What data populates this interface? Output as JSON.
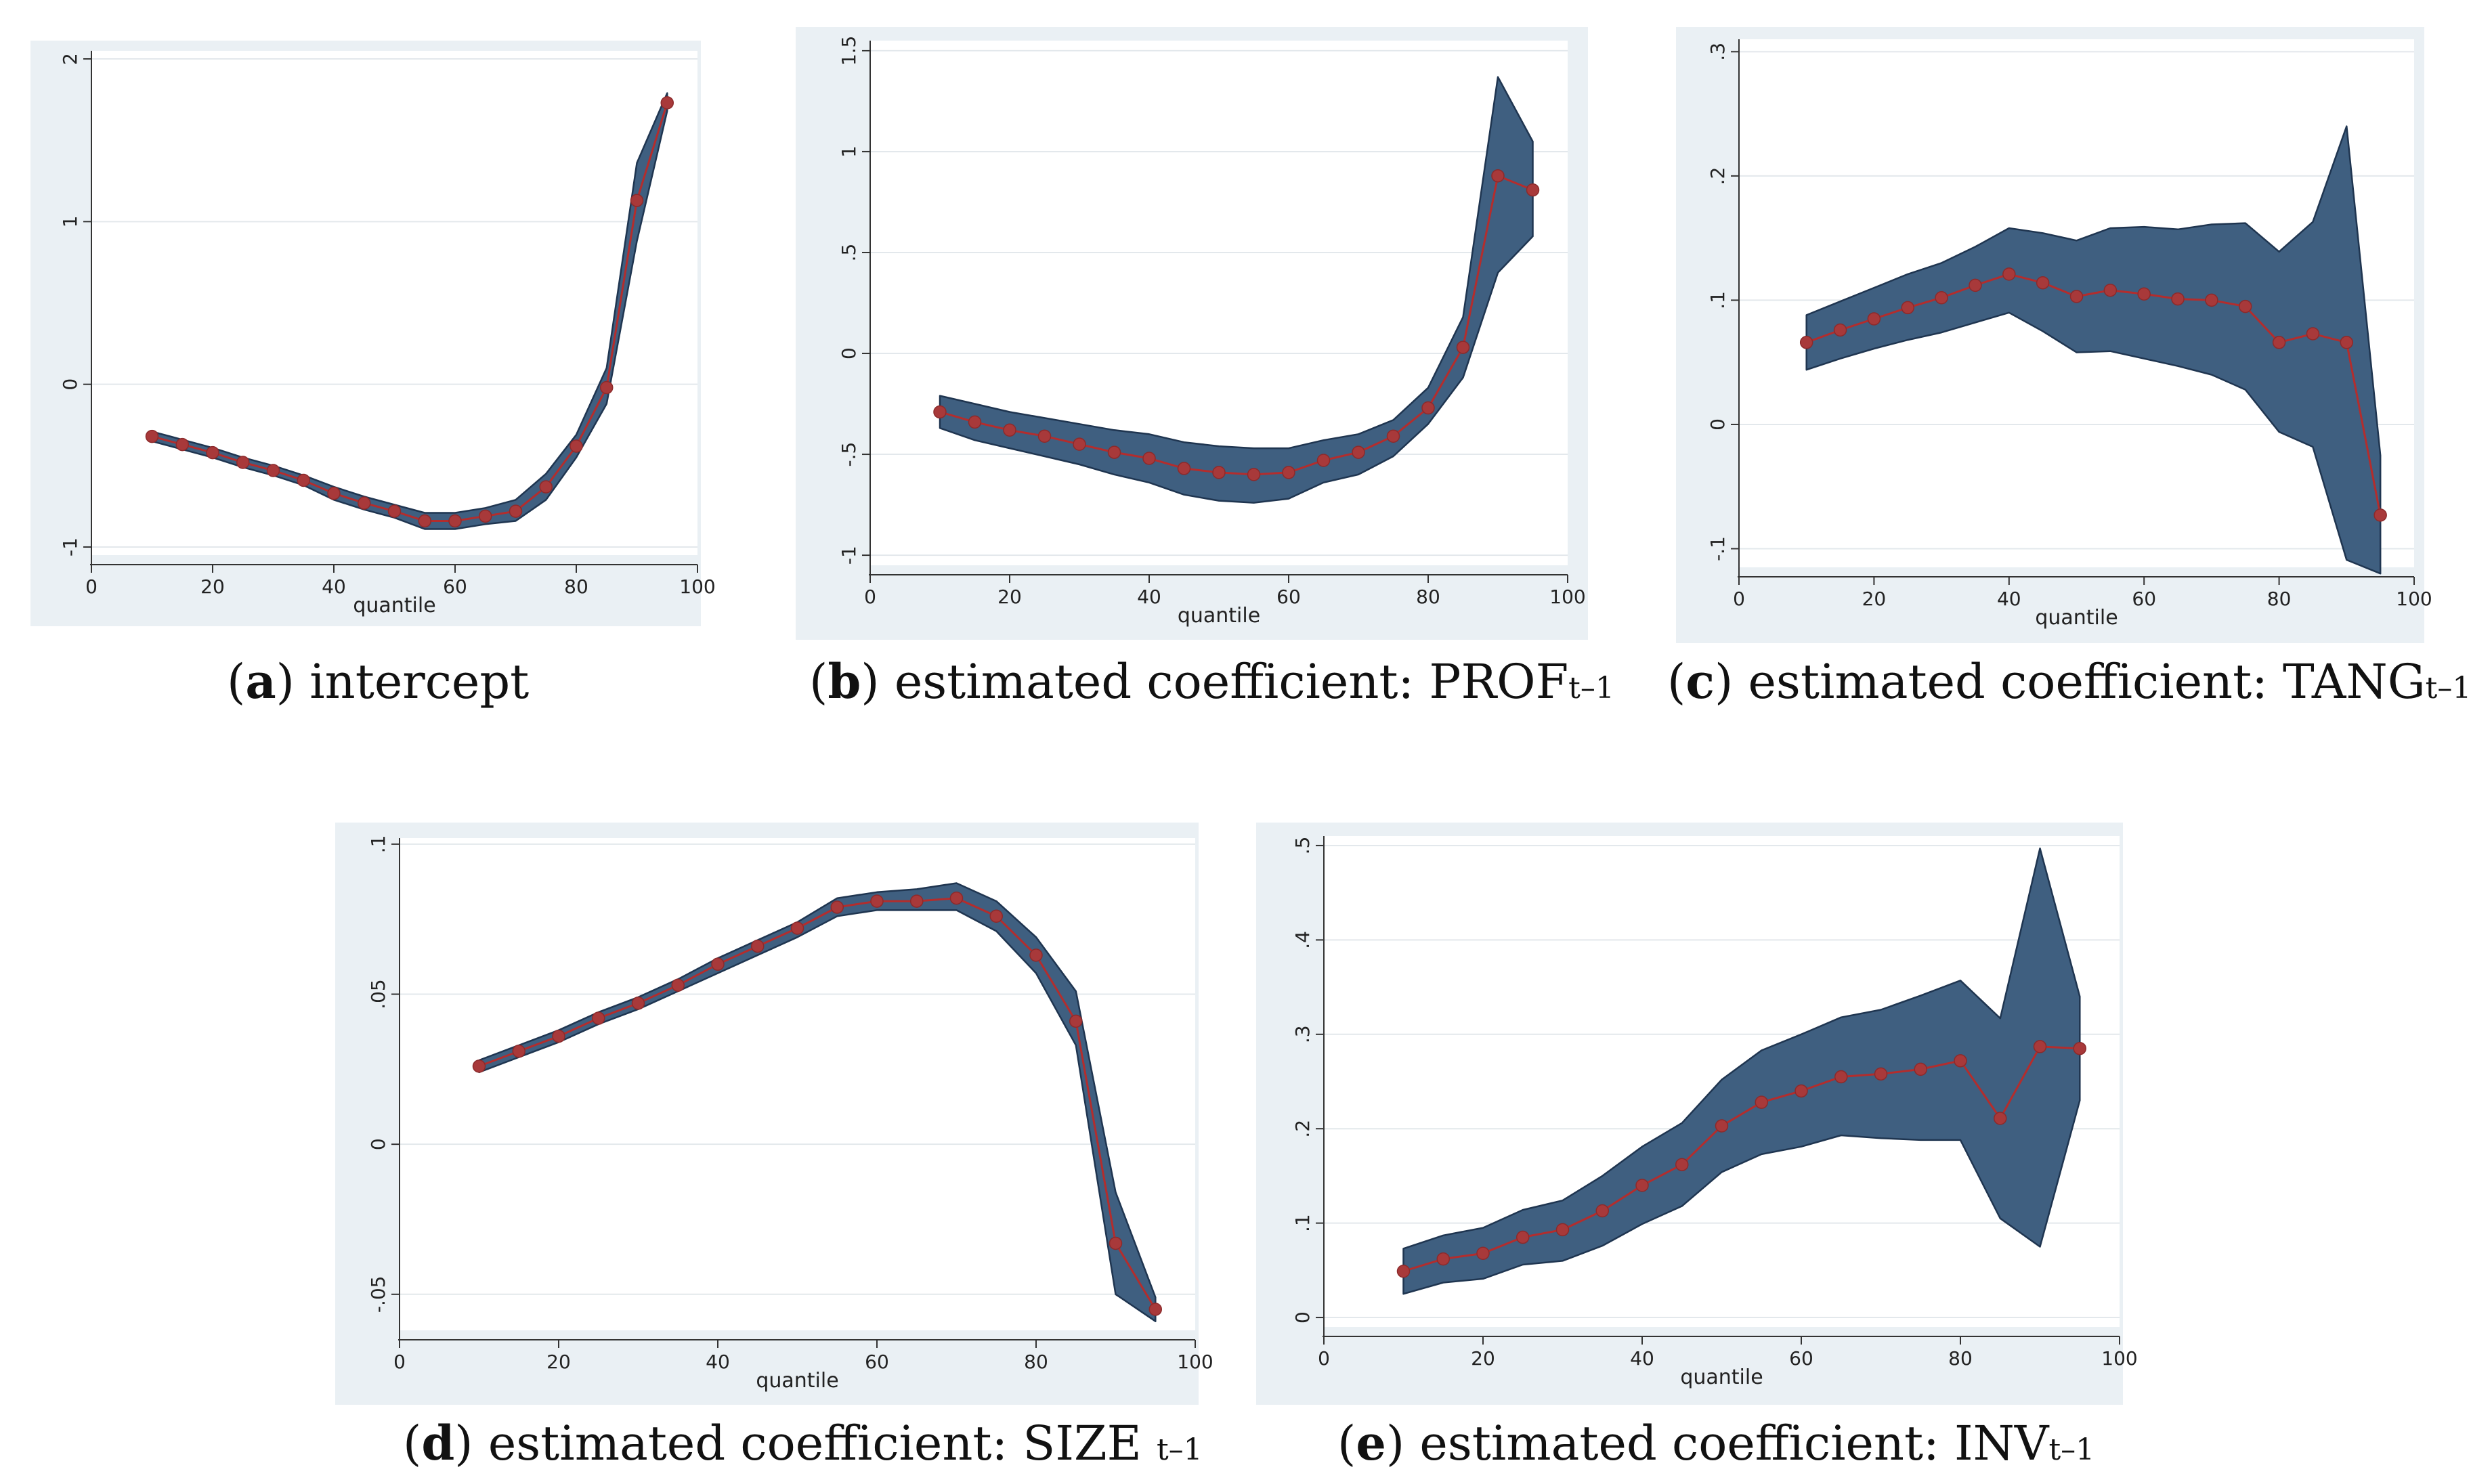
{
  "chart_data": [
    {
      "id": "a",
      "type": "line",
      "xlabel": "quantile",
      "xlim": [
        0,
        100
      ],
      "xticks": [
        "0",
        "20",
        "40",
        "60",
        "80",
        "100"
      ],
      "ylim": [
        -1.05,
        2.05
      ],
      "yticks": [
        {
          "v": -1,
          "t": "-1"
        },
        {
          "v": 0,
          "t": "0"
        },
        {
          "v": 1,
          "t": "1"
        },
        {
          "v": 2,
          "t": "2"
        }
      ],
      "x": [
        10,
        15,
        20,
        25,
        30,
        35,
        40,
        45,
        50,
        55,
        60,
        65,
        70,
        75,
        80,
        85,
        90,
        95
      ],
      "y": [
        -0.32,
        -0.37,
        -0.42,
        -0.48,
        -0.53,
        -0.59,
        -0.67,
        -0.73,
        -0.78,
        -0.84,
        -0.84,
        -0.81,
        -0.78,
        -0.63,
        -0.38,
        -0.02,
        1.13,
        1.73
      ],
      "lower": [
        -0.35,
        -0.4,
        -0.45,
        -0.51,
        -0.56,
        -0.62,
        -0.71,
        -0.77,
        -0.82,
        -0.89,
        -0.89,
        -0.86,
        -0.84,
        -0.71,
        -0.45,
        -0.12,
        0.88,
        1.68
      ],
      "upper": [
        -0.29,
        -0.34,
        -0.39,
        -0.45,
        -0.5,
        -0.56,
        -0.63,
        -0.69,
        -0.74,
        -0.79,
        -0.79,
        -0.76,
        -0.71,
        -0.55,
        -0.31,
        0.1,
        1.36,
        1.79
      ],
      "caption_label": "a",
      "caption_text": "intercept",
      "caption_sub": ""
    },
    {
      "id": "b",
      "type": "line",
      "xlabel": "quantile",
      "xlim": [
        0,
        100
      ],
      "xticks": [
        "0",
        "20",
        "40",
        "60",
        "80",
        "100"
      ],
      "ylim": [
        -1.05,
        1.55
      ],
      "yticks": [
        {
          "v": -1,
          "t": "-1"
        },
        {
          "v": -0.5,
          "t": "-.5"
        },
        {
          "v": 0,
          "t": "0"
        },
        {
          "v": 0.5,
          "t": ".5"
        },
        {
          "v": 1,
          "t": "1"
        },
        {
          "v": 1.5,
          "t": "1.5"
        }
      ],
      "x": [
        10,
        15,
        20,
        25,
        30,
        35,
        40,
        45,
        50,
        55,
        60,
        65,
        70,
        75,
        80,
        85,
        90,
        95
      ],
      "y": [
        -0.29,
        -0.34,
        -0.38,
        -0.41,
        -0.45,
        -0.49,
        -0.52,
        -0.57,
        -0.59,
        -0.6,
        -0.59,
        -0.53,
        -0.49,
        -0.41,
        -0.27,
        0.03,
        0.88,
        0.81
      ],
      "lower": [
        -0.37,
        -0.43,
        -0.47,
        -0.51,
        -0.55,
        -0.6,
        -0.64,
        -0.7,
        -0.73,
        -0.74,
        -0.72,
        -0.64,
        -0.6,
        -0.51,
        -0.35,
        -0.12,
        0.4,
        0.58
      ],
      "upper": [
        -0.21,
        -0.25,
        -0.29,
        -0.32,
        -0.35,
        -0.38,
        -0.4,
        -0.44,
        -0.46,
        -0.47,
        -0.47,
        -0.43,
        -0.4,
        -0.33,
        -0.17,
        0.18,
        1.37,
        1.05
      ],
      "caption_label": "b",
      "caption_text": "estimated coefficient: PROF",
      "caption_sub": "t–1"
    },
    {
      "id": "c",
      "type": "line",
      "xlabel": "quantile",
      "xlim": [
        0,
        100
      ],
      "xticks": [
        "0",
        "20",
        "40",
        "60",
        "80",
        "100"
      ],
      "ylim": [
        -0.115,
        0.31
      ],
      "yticks": [
        {
          "v": -0.1,
          "t": "-.1"
        },
        {
          "v": 0,
          "t": "0"
        },
        {
          "v": 0.1,
          "t": ".1"
        },
        {
          "v": 0.2,
          "t": ".2"
        },
        {
          "v": 0.3,
          "t": ".3"
        }
      ],
      "x": [
        10,
        15,
        20,
        25,
        30,
        35,
        40,
        45,
        50,
        55,
        60,
        65,
        70,
        75,
        80,
        85,
        90,
        95
      ],
      "y": [
        0.066,
        0.076,
        0.085,
        0.094,
        0.102,
        0.112,
        0.121,
        0.114,
        0.103,
        0.108,
        0.105,
        0.101,
        0.1,
        0.095,
        0.066,
        0.073,
        0.066,
        -0.073
      ],
      "lower": [
        0.044,
        0.053,
        0.061,
        0.068,
        0.074,
        0.082,
        0.09,
        0.075,
        0.058,
        0.059,
        0.053,
        0.047,
        0.04,
        0.028,
        -0.006,
        -0.018,
        -0.109,
        -0.12
      ],
      "upper": [
        0.088,
        0.099,
        0.11,
        0.121,
        0.13,
        0.143,
        0.158,
        0.154,
        0.148,
        0.158,
        0.159,
        0.157,
        0.161,
        0.162,
        0.139,
        0.163,
        0.24,
        -0.025
      ],
      "caption_label": "c",
      "caption_text": "estimated coefficient: TANG",
      "caption_sub": "t–1"
    },
    {
      "id": "d",
      "type": "line",
      "xlabel": "quantile",
      "xlim": [
        0,
        100
      ],
      "xticks": [
        "0",
        "20",
        "40",
        "60",
        "80",
        "100"
      ],
      "ylim": [
        -0.062,
        0.102
      ],
      "yticks": [
        {
          "v": -0.05,
          "t": "-.05"
        },
        {
          "v": 0,
          "t": "0"
        },
        {
          "v": 0.05,
          "t": ".05"
        },
        {
          "v": 0.1,
          "t": ".1"
        }
      ],
      "x": [
        10,
        15,
        20,
        25,
        30,
        35,
        40,
        45,
        50,
        55,
        60,
        65,
        70,
        75,
        80,
        85,
        90,
        95
      ],
      "y": [
        0.026,
        0.031,
        0.036,
        0.042,
        0.047,
        0.053,
        0.06,
        0.066,
        0.072,
        0.079,
        0.081,
        0.081,
        0.082,
        0.076,
        0.063,
        0.041,
        -0.033,
        -0.055
      ],
      "lower": [
        0.024,
        0.029,
        0.034,
        0.04,
        0.045,
        0.051,
        0.057,
        0.063,
        0.069,
        0.076,
        0.078,
        0.078,
        0.078,
        0.071,
        0.057,
        0.033,
        -0.05,
        -0.059
      ],
      "upper": [
        0.028,
        0.033,
        0.038,
        0.044,
        0.049,
        0.055,
        0.062,
        0.068,
        0.074,
        0.082,
        0.084,
        0.085,
        0.087,
        0.081,
        0.069,
        0.051,
        -0.016,
        -0.051
      ],
      "caption_label": "d",
      "caption_text": "estimated coefficient: SIZE",
      "caption_sub": "t–1"
    },
    {
      "id": "e",
      "type": "line",
      "xlabel": "quantile",
      "xlim": [
        0,
        100
      ],
      "xticks": [
        "0",
        "20",
        "40",
        "60",
        "80",
        "100"
      ],
      "ylim": [
        -0.01,
        0.51
      ],
      "yticks": [
        {
          "v": 0,
          "t": "0"
        },
        {
          "v": 0.1,
          "t": ".1"
        },
        {
          "v": 0.2,
          "t": ".2"
        },
        {
          "v": 0.3,
          "t": ".3"
        },
        {
          "v": 0.4,
          "t": ".4"
        },
        {
          "v": 0.5,
          "t": ".5"
        }
      ],
      "x": [
        10,
        15,
        20,
        25,
        30,
        35,
        40,
        45,
        50,
        55,
        60,
        65,
        70,
        75,
        80,
        85,
        90,
        95
      ],
      "y": [
        0.049,
        0.062,
        0.068,
        0.085,
        0.093,
        0.113,
        0.14,
        0.162,
        0.203,
        0.228,
        0.24,
        0.255,
        0.258,
        0.263,
        0.272,
        0.211,
        0.287,
        0.285
      ],
      "lower": [
        0.025,
        0.037,
        0.041,
        0.056,
        0.06,
        0.076,
        0.099,
        0.118,
        0.154,
        0.173,
        0.181,
        0.193,
        0.19,
        0.188,
        0.188,
        0.105,
        0.075,
        0.23
      ],
      "upper": [
        0.073,
        0.087,
        0.095,
        0.114,
        0.124,
        0.15,
        0.181,
        0.206,
        0.252,
        0.283,
        0.3,
        0.318,
        0.326,
        0.341,
        0.357,
        0.317,
        0.497,
        0.34
      ],
      "caption_label": "e",
      "caption_text": "estimated coefficient: INV",
      "caption_sub": "t–1"
    }
  ]
}
